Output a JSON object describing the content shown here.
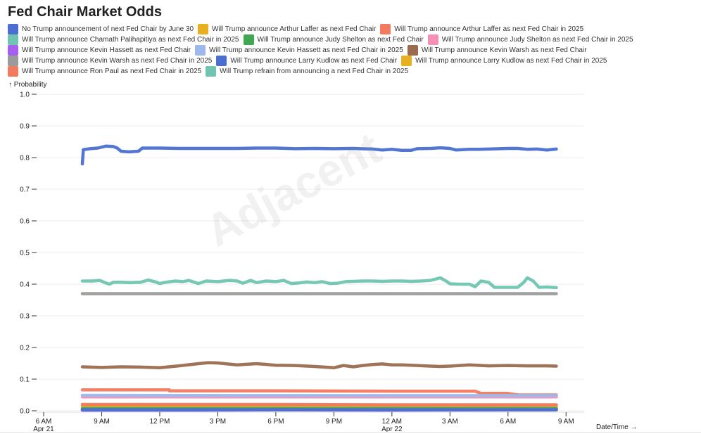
{
  "title": "Fed Chair Market Odds",
  "watermark": "Adjacent",
  "chart_data": {
    "type": "line",
    "title": "Fed Chair Market Odds",
    "ylabel": "↑ Probability",
    "xlabel": "Date/Time →",
    "ylim": [
      0,
      1
    ],
    "grid": true,
    "legend_position": "top",
    "y_ticks": [
      "0.0",
      "0.1",
      "0.2",
      "0.3",
      "0.4",
      "0.5",
      "0.6",
      "0.7",
      "0.8",
      "0.9",
      "1.0"
    ],
    "x_ticks": [
      {
        "h": 0,
        "line1": "6 AM",
        "line2": "Apr 21"
      },
      {
        "h": 3,
        "line1": "9 AM",
        "line2": ""
      },
      {
        "h": 6,
        "line1": "12 PM",
        "line2": ""
      },
      {
        "h": 9,
        "line1": "3 PM",
        "line2": ""
      },
      {
        "h": 12,
        "line1": "6 PM",
        "line2": ""
      },
      {
        "h": 15,
        "line1": "9 PM",
        "line2": ""
      },
      {
        "h": 18,
        "line1": "12 AM",
        "line2": "Apr 22"
      },
      {
        "h": 21,
        "line1": "3 AM",
        "line2": ""
      },
      {
        "h": 24,
        "line1": "6 AM",
        "line2": ""
      },
      {
        "h": 27,
        "line1": "9 AM",
        "line2": ""
      }
    ],
    "x_hours_start": 2.0,
    "x_hours_end": 26.5,
    "x_axis_max_hours": 28.3,
    "series": [
      {
        "name": "No Trump announcement of next Fed Chair by June 30",
        "color": "#4a6fd0",
        "points": [
          [
            2.0,
            0.78
          ],
          [
            2.05,
            0.825
          ],
          [
            2.4,
            0.828
          ],
          [
            2.8,
            0.83
          ],
          [
            3.2,
            0.836
          ],
          [
            3.6,
            0.835
          ],
          [
            3.8,
            0.83
          ],
          [
            4.0,
            0.82
          ],
          [
            4.4,
            0.818
          ],
          [
            4.9,
            0.82
          ],
          [
            5.1,
            0.83
          ],
          [
            6.0,
            0.83
          ],
          [
            7.0,
            0.829
          ],
          [
            8.0,
            0.829
          ],
          [
            9.0,
            0.829
          ],
          [
            10.0,
            0.829
          ],
          [
            11.0,
            0.83
          ],
          [
            12.0,
            0.83
          ],
          [
            13.0,
            0.828
          ],
          [
            14.0,
            0.829
          ],
          [
            15.0,
            0.828
          ],
          [
            16.0,
            0.829
          ],
          [
            17.0,
            0.827
          ],
          [
            17.5,
            0.824
          ],
          [
            18.0,
            0.826
          ],
          [
            18.5,
            0.823
          ],
          [
            19.0,
            0.823
          ],
          [
            19.3,
            0.828
          ],
          [
            20.0,
            0.829
          ],
          [
            20.5,
            0.831
          ],
          [
            21.0,
            0.829
          ],
          [
            21.3,
            0.824
          ],
          [
            22.0,
            0.826
          ],
          [
            22.5,
            0.826
          ],
          [
            23.0,
            0.827
          ],
          [
            24.0,
            0.829
          ],
          [
            24.5,
            0.829
          ],
          [
            25.0,
            0.826
          ],
          [
            25.5,
            0.827
          ],
          [
            26.0,
            0.824
          ],
          [
            26.5,
            0.827
          ]
        ]
      },
      {
        "name": "Will Trump announce Arthur Laffer as next Fed Chair",
        "color": "#e8b021",
        "points": [
          [
            2.0,
            0.013
          ],
          [
            6.0,
            0.013
          ],
          [
            12.0,
            0.012
          ],
          [
            18.0,
            0.012
          ],
          [
            24.0,
            0.012
          ],
          [
            26.5,
            0.012
          ]
        ]
      },
      {
        "name": "Will Trump announce Arthur Laffer as next Fed Chair in 2025",
        "color": "#f17a5f",
        "points": [
          [
            2.0,
            0.066
          ],
          [
            6.5,
            0.066
          ],
          [
            6.5,
            0.063
          ],
          [
            12.0,
            0.063
          ],
          [
            18.0,
            0.062
          ],
          [
            22.3,
            0.062
          ],
          [
            22.6,
            0.055
          ],
          [
            24.0,
            0.055
          ],
          [
            24.5,
            0.05
          ],
          [
            26.5,
            0.05
          ]
        ]
      },
      {
        "name": "Will Trump announce Chamath Palihapitiya as next Fed Chair in 2025",
        "color": "#6fc5b1",
        "points": [
          [
            2.0,
            0.005
          ],
          [
            12.0,
            0.005
          ],
          [
            18.0,
            0.005
          ],
          [
            26.5,
            0.005
          ]
        ]
      },
      {
        "name": "Will Trump announce Judy Shelton as next Fed Chair",
        "color": "#40a853",
        "points": [
          [
            2.0,
            0.007
          ],
          [
            12.0,
            0.007
          ],
          [
            18.0,
            0.007
          ],
          [
            26.5,
            0.007
          ]
        ]
      },
      {
        "name": "Will Trump announce Judy Shelton as next Fed Chair in 2025",
        "color": "#f58fb4",
        "points": [
          [
            2.0,
            0.044
          ],
          [
            12.0,
            0.044
          ],
          [
            18.0,
            0.044
          ],
          [
            26.5,
            0.044
          ]
        ]
      },
      {
        "name": "Will Trump announce Kevin Hassett as next Fed Chair",
        "color": "#a55ff1",
        "points": [
          [
            2.0,
            0.002
          ],
          [
            8.0,
            0.002
          ],
          [
            12.0,
            0.003
          ],
          [
            18.0,
            0.002
          ],
          [
            26.5,
            0.003
          ]
        ]
      },
      {
        "name": "Will Trump announce Kevin Hassett as next Fed Chair in 2025",
        "color": "#9db8ec",
        "points": [
          [
            2.0,
            0.049
          ],
          [
            12.0,
            0.048
          ],
          [
            18.0,
            0.048
          ],
          [
            26.5,
            0.048
          ]
        ]
      },
      {
        "name": "Will Trump announce Kevin Warsh as next Fed Chair",
        "color": "#9a6b4f",
        "points": [
          [
            2.0,
            0.139
          ],
          [
            3.0,
            0.137
          ],
          [
            4.0,
            0.139
          ],
          [
            5.0,
            0.138
          ],
          [
            6.0,
            0.136
          ],
          [
            7.0,
            0.142
          ],
          [
            8.0,
            0.149
          ],
          [
            8.5,
            0.152
          ],
          [
            9.0,
            0.151
          ],
          [
            10.0,
            0.145
          ],
          [
            11.0,
            0.149
          ],
          [
            12.0,
            0.144
          ],
          [
            13.0,
            0.143
          ],
          [
            14.0,
            0.14
          ],
          [
            15.0,
            0.136
          ],
          [
            15.5,
            0.143
          ],
          [
            16.0,
            0.139
          ],
          [
            16.5,
            0.143
          ],
          [
            17.0,
            0.146
          ],
          [
            17.5,
            0.148
          ],
          [
            18.0,
            0.145
          ],
          [
            18.5,
            0.145
          ],
          [
            19.0,
            0.144
          ],
          [
            20.0,
            0.141
          ],
          [
            20.5,
            0.14
          ],
          [
            21.0,
            0.141
          ],
          [
            21.5,
            0.143
          ],
          [
            22.0,
            0.145
          ],
          [
            23.0,
            0.142
          ],
          [
            24.0,
            0.143
          ],
          [
            25.0,
            0.142
          ],
          [
            26.0,
            0.142
          ],
          [
            26.5,
            0.141
          ]
        ]
      },
      {
        "name": "Will Trump announce Kevin Warsh as next Fed Chair in 2025",
        "color": "#9b9b9b",
        "points": [
          [
            2.0,
            0.37
          ],
          [
            12.0,
            0.37
          ],
          [
            18.0,
            0.37
          ],
          [
            26.5,
            0.37
          ]
        ]
      },
      {
        "name": "Will Trump announce Larry Kudlow as next Fed Chair",
        "color": "#4a6fd0",
        "points": [
          [
            2.0,
            0.003
          ],
          [
            12.0,
            0.003
          ],
          [
            26.5,
            0.003
          ]
        ]
      },
      {
        "name": "Will Trump announce Larry Kudlow as next Fed Chair in 2025",
        "color": "#e8b021",
        "points": [
          [
            2.0,
            0.018
          ],
          [
            12.0,
            0.018
          ],
          [
            18.0,
            0.018
          ],
          [
            26.5,
            0.018
          ]
        ]
      },
      {
        "name": "Will Trump announce Ron Paul as next Fed Chair in 2025",
        "color": "#f17a5f",
        "points": [
          [
            2.0,
            0.02
          ],
          [
            12.0,
            0.02
          ],
          [
            18.0,
            0.019
          ],
          [
            26.5,
            0.019
          ]
        ]
      },
      {
        "name": "Will Trump refrain from announcing a next Fed Chair in 2025",
        "color": "#6fc5b1",
        "points": [
          [
            2.0,
            0.41
          ],
          [
            2.5,
            0.41
          ],
          [
            2.9,
            0.412
          ],
          [
            3.2,
            0.404
          ],
          [
            3.4,
            0.4
          ],
          [
            3.6,
            0.406
          ],
          [
            4.0,
            0.406
          ],
          [
            4.5,
            0.405
          ],
          [
            5.0,
            0.406
          ],
          [
            5.4,
            0.413
          ],
          [
            5.8,
            0.407
          ],
          [
            6.0,
            0.402
          ],
          [
            6.3,
            0.406
          ],
          [
            6.8,
            0.41
          ],
          [
            7.2,
            0.408
          ],
          [
            7.5,
            0.412
          ],
          [
            8.0,
            0.402
          ],
          [
            8.4,
            0.41
          ],
          [
            9.0,
            0.408
          ],
          [
            9.6,
            0.412
          ],
          [
            10.0,
            0.41
          ],
          [
            10.3,
            0.403
          ],
          [
            10.7,
            0.412
          ],
          [
            11.0,
            0.405
          ],
          [
            11.5,
            0.41
          ],
          [
            12.0,
            0.408
          ],
          [
            12.4,
            0.412
          ],
          [
            12.8,
            0.402
          ],
          [
            13.2,
            0.404
          ],
          [
            13.6,
            0.407
          ],
          [
            14.0,
            0.405
          ],
          [
            14.4,
            0.408
          ],
          [
            14.8,
            0.402
          ],
          [
            15.2,
            0.403
          ],
          [
            15.6,
            0.408
          ],
          [
            16.0,
            0.409
          ],
          [
            16.5,
            0.41
          ],
          [
            17.0,
            0.41
          ],
          [
            17.5,
            0.409
          ],
          [
            18.0,
            0.41
          ],
          [
            18.5,
            0.41
          ],
          [
            19.0,
            0.409
          ],
          [
            19.5,
            0.41
          ],
          [
            20.0,
            0.412
          ],
          [
            20.5,
            0.42
          ],
          [
            20.8,
            0.41
          ],
          [
            21.0,
            0.401
          ],
          [
            21.5,
            0.4
          ],
          [
            22.0,
            0.4
          ],
          [
            22.3,
            0.392
          ],
          [
            22.6,
            0.41
          ],
          [
            23.0,
            0.406
          ],
          [
            23.3,
            0.39
          ],
          [
            24.0,
            0.39
          ],
          [
            24.5,
            0.39
          ],
          [
            24.8,
            0.405
          ],
          [
            25.0,
            0.42
          ],
          [
            25.3,
            0.41
          ],
          [
            25.6,
            0.39
          ],
          [
            26.0,
            0.391
          ],
          [
            26.5,
            0.389
          ]
        ]
      }
    ]
  }
}
